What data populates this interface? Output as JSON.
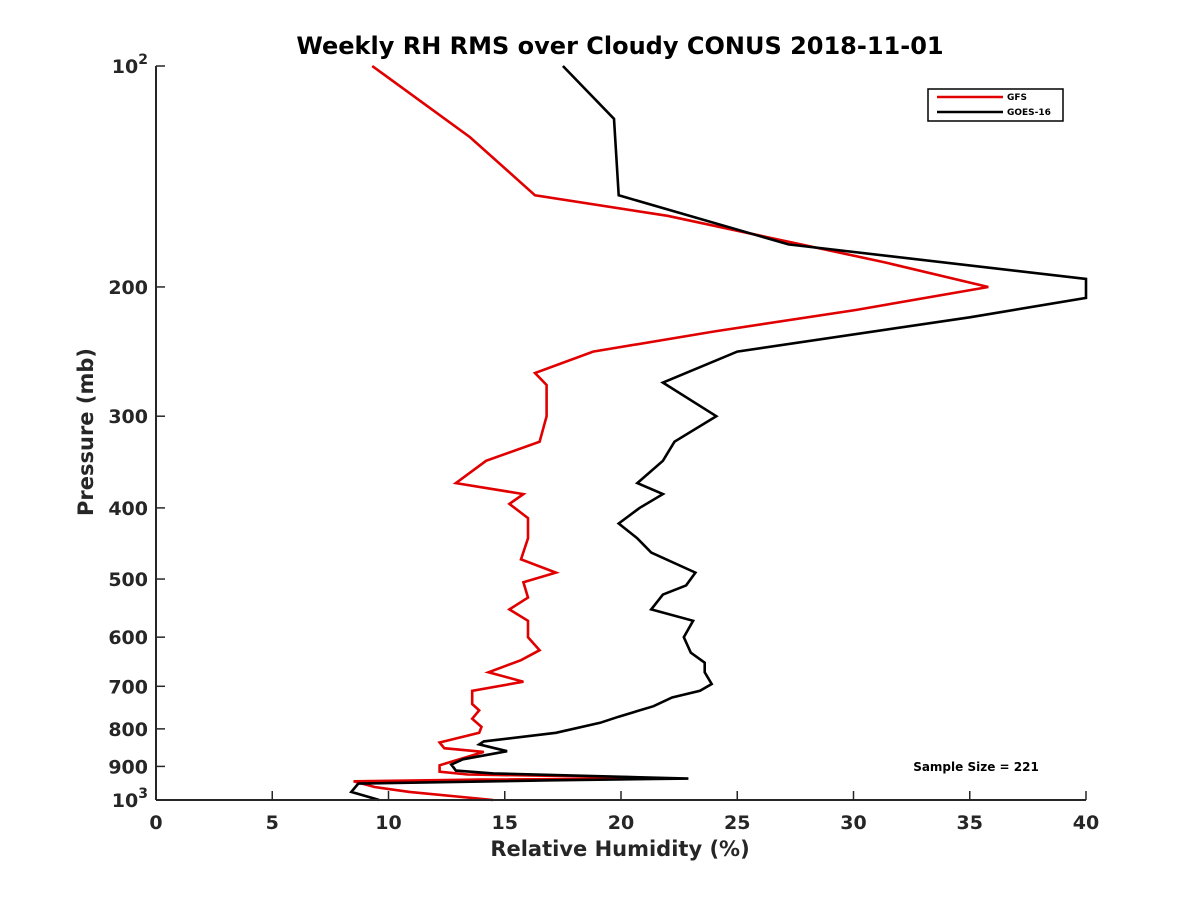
{
  "chart_data": {
    "type": "line",
    "title": "Weekly RH RMS over Cloudy CONUS 2018-11-01",
    "xlabel": "Relative Humidity (%)",
    "ylabel": "Pressure (mb)",
    "xlim": [
      0,
      40
    ],
    "ylim": [
      100,
      1000
    ],
    "y_scale": "log",
    "y_reversed": true,
    "x_ticks": [
      "0",
      "5",
      "10",
      "15",
      "20",
      "25",
      "30",
      "35",
      "40"
    ],
    "y_ticks": [
      {
        "value": 100,
        "label": "10",
        "sup": "2"
      },
      {
        "value": 200,
        "label": "200",
        "sup": ""
      },
      {
        "value": 300,
        "label": "300",
        "sup": ""
      },
      {
        "value": 400,
        "label": "400",
        "sup": ""
      },
      {
        "value": 500,
        "label": "500",
        "sup": ""
      },
      {
        "value": 600,
        "label": "600",
        "sup": ""
      },
      {
        "value": 700,
        "label": "700",
        "sup": ""
      },
      {
        "value": 800,
        "label": "800",
        "sup": ""
      },
      {
        "value": 900,
        "label": "900",
        "sup": ""
      },
      {
        "value": 1000,
        "label": "10",
        "sup": "3"
      }
    ],
    "grid": false,
    "legend_position": "top-right",
    "annotation": "Sample Size = 221",
    "series": [
      {
        "name": "GFS",
        "color": "#e00000",
        "points": [
          [
            9.3,
            100
          ],
          [
            13.5,
            125
          ],
          [
            16.3,
            150
          ],
          [
            22.0,
            160
          ],
          [
            31.3,
            185
          ],
          [
            35.8,
            200
          ],
          [
            30.1,
            215
          ],
          [
            24.0,
            230
          ],
          [
            18.8,
            245
          ],
          [
            16.3,
            262
          ],
          [
            16.8,
            272
          ],
          [
            16.8,
            300
          ],
          [
            16.5,
            325
          ],
          [
            14.2,
            345
          ],
          [
            12.9,
            370
          ],
          [
            15.8,
            383
          ],
          [
            15.2,
            395
          ],
          [
            16.0,
            413
          ],
          [
            16.0,
            440
          ],
          [
            15.7,
            470
          ],
          [
            17.2,
            490
          ],
          [
            15.8,
            505
          ],
          [
            16.0,
            530
          ],
          [
            15.2,
            550
          ],
          [
            16.0,
            570
          ],
          [
            16.0,
            600
          ],
          [
            16.5,
            625
          ],
          [
            15.7,
            645
          ],
          [
            14.3,
            670
          ],
          [
            15.8,
            690
          ],
          [
            13.6,
            710
          ],
          [
            13.6,
            740
          ],
          [
            13.9,
            755
          ],
          [
            13.6,
            775
          ],
          [
            14.0,
            795
          ],
          [
            13.9,
            810
          ],
          [
            12.2,
            835
          ],
          [
            12.4,
            850
          ],
          [
            14.1,
            860
          ],
          [
            12.2,
            897
          ],
          [
            12.2,
            915
          ],
          [
            13.4,
            923
          ],
          [
            20.0,
            930
          ],
          [
            22.0,
            935
          ],
          [
            14.0,
            938
          ],
          [
            8.5,
            943
          ],
          [
            9.4,
            960
          ],
          [
            10.9,
            975
          ],
          [
            14.5,
            1000
          ]
        ]
      },
      {
        "name": "GOES-16",
        "color": "#000000",
        "points": [
          [
            17.5,
            100
          ],
          [
            19.7,
            118
          ],
          [
            19.9,
            150
          ],
          [
            27.2,
            175
          ],
          [
            40.0,
            195
          ],
          [
            40.0,
            207
          ],
          [
            35.0,
            220
          ],
          [
            25.0,
            245
          ],
          [
            21.8,
            270
          ],
          [
            24.1,
            300
          ],
          [
            22.3,
            325
          ],
          [
            21.8,
            345
          ],
          [
            20.7,
            370
          ],
          [
            21.8,
            383
          ],
          [
            20.8,
            400
          ],
          [
            19.9,
            420
          ],
          [
            20.7,
            440
          ],
          [
            21.3,
            460
          ],
          [
            23.2,
            490
          ],
          [
            22.8,
            510
          ],
          [
            21.8,
            525
          ],
          [
            21.3,
            550
          ],
          [
            23.1,
            570
          ],
          [
            22.7,
            600
          ],
          [
            23.0,
            630
          ],
          [
            23.6,
            650
          ],
          [
            23.6,
            670
          ],
          [
            23.9,
            695
          ],
          [
            23.4,
            710
          ],
          [
            22.2,
            725
          ],
          [
            21.4,
            745
          ],
          [
            19.9,
            770
          ],
          [
            19.1,
            785
          ],
          [
            17.2,
            810
          ],
          [
            14.1,
            832
          ],
          [
            13.9,
            840
          ],
          [
            15.1,
            858
          ],
          [
            13.2,
            880
          ],
          [
            12.7,
            895
          ],
          [
            12.9,
            912
          ],
          [
            14.5,
            920
          ],
          [
            22.9,
            935
          ],
          [
            17.0,
            940
          ],
          [
            8.7,
            950
          ],
          [
            8.4,
            975
          ],
          [
            9.6,
            1000
          ]
        ]
      }
    ]
  }
}
